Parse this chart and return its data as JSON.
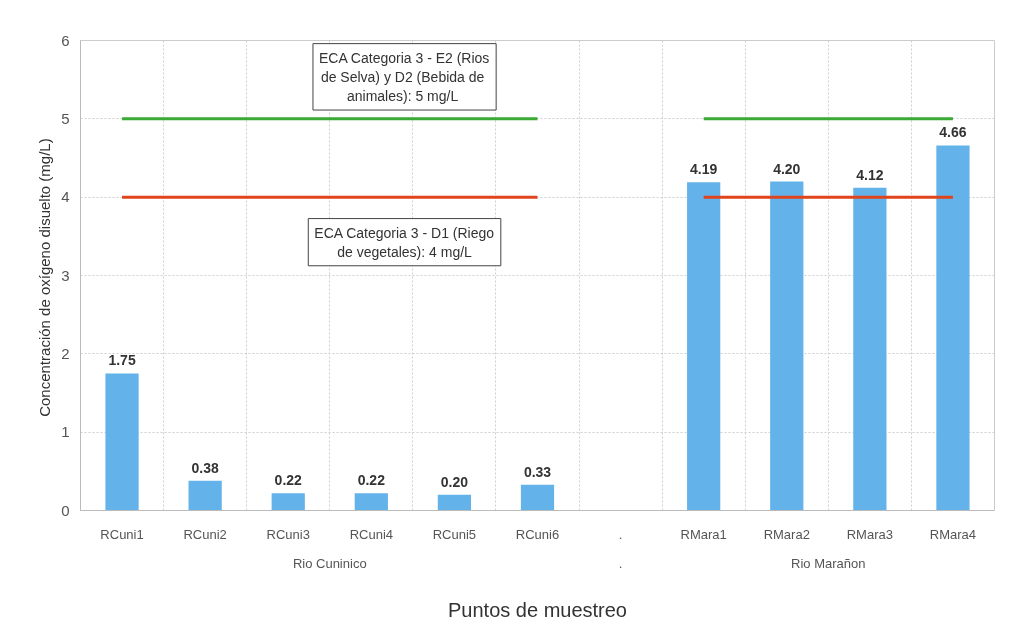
{
  "chart_data": {
    "type": "bar",
    "xlabel": "Puntos de muestreo",
    "ylabel": "Concentración de oxígeno disuelto  (mg/L)",
    "categories": [
      "RCuni1",
      "RCuni2",
      "RCuni3",
      "RCuni4",
      "RCuni5",
      "RCuni6",
      ".",
      "RMara1",
      "RMara2",
      "RMara3",
      "RMara4"
    ],
    "series": [
      {
        "color": "#63b3ea",
        "values": [
          1.75,
          0.38,
          0.22,
          0.22,
          0.2,
          0.33,
          null,
          4.19,
          4.2,
          4.12,
          4.66
        ],
        "value_labels": [
          "1.75",
          "0.38",
          "0.22",
          "0.22",
          "0.20",
          "0.33",
          null,
          "4.19",
          "4.20",
          "4.12",
          "4.66"
        ]
      },
      {
        "type": "line",
        "color": "#3aa935",
        "values": [
          5,
          5,
          5,
          5,
          5,
          5,
          null,
          5,
          5,
          5,
          5
        ]
      },
      {
        "type": "line",
        "color": "#e0441c",
        "values": [
          4,
          4,
          4,
          4,
          4,
          4,
          null,
          4,
          4,
          4,
          4
        ]
      }
    ],
    "ylim": [
      0,
      6
    ],
    "yticks": [
      0,
      1,
      2,
      3,
      4,
      5,
      6
    ],
    "grid": true,
    "annotations": [
      "Rio Cuninico",
      ".",
      "Rio Marañon",
      {
        "text": "ECA Categoria 3 - E2 (Rios de Selva)  y D2 (Bebida de animales):  5 mg/L",
        "y": 5
      },
      {
        "text": "ECA Categoria 3 - D1 (Riego de vegetales): 4 mg/L",
        "y": 4
      }
    ]
  }
}
